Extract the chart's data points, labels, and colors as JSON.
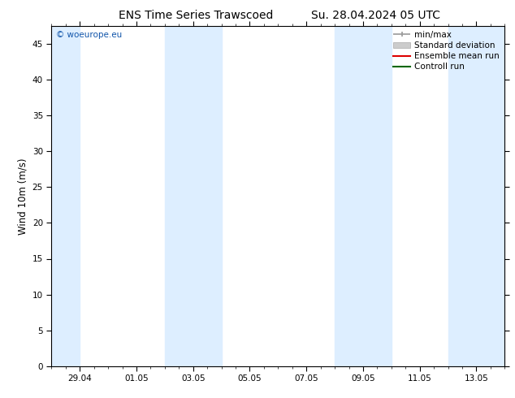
{
  "title_left": "ENS Time Series Trawscoed",
  "title_right": "Su. 28.04.2024 05 UTC",
  "ylabel": "Wind 10m (m/s)",
  "watermark": "© woeurope.eu",
  "ylim": [
    0,
    47.5
  ],
  "yticks": [
    0,
    5,
    10,
    15,
    20,
    25,
    30,
    35,
    40,
    45
  ],
  "xtick_labels": [
    "29.04",
    "01.05",
    "03.05",
    "05.05",
    "07.05",
    "09.05",
    "11.05",
    "13.05"
  ],
  "xtick_positions": [
    1,
    3,
    5,
    7,
    9,
    11,
    13,
    15
  ],
  "xlim": [
    0,
    16
  ],
  "shade_bands": [
    [
      0,
      1
    ],
    [
      4,
      6
    ],
    [
      10,
      12
    ],
    [
      14,
      16
    ]
  ],
  "shade_color": "#ddeeff",
  "background_color": "#ffffff",
  "watermark_color": "#1155aa",
  "title_fontsize": 10,
  "tick_fontsize": 7.5,
  "ylabel_fontsize": 8.5,
  "legend_fontsize": 7.5
}
